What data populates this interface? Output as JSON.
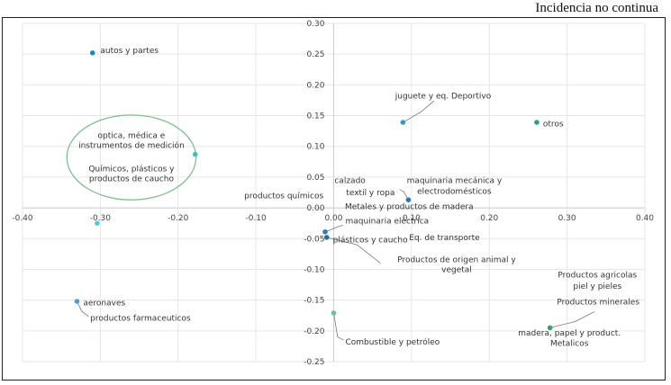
{
  "header": {
    "title": "Incidencia no continua"
  },
  "colors": {
    "grid": "#e6e6e6",
    "axis": "#cfcfcf",
    "ellipse": "#7dbf8e",
    "leader": "#777777"
  },
  "chart_data": {
    "type": "scatter",
    "title": "",
    "xlabel": "",
    "ylabel": "",
    "xlim": [
      -0.4,
      0.4
    ],
    "ylim": [
      -0.25,
      0.3
    ],
    "x_ticks": [
      {
        "v": -0.4,
        "label": "-0.40"
      },
      {
        "v": -0.3,
        "label": "-0.30"
      },
      {
        "v": -0.2,
        "label": "-0.20"
      },
      {
        "v": -0.1,
        "label": "-0.10"
      },
      {
        "v": 0.0,
        "label": "0.00"
      },
      {
        "v": 0.1,
        "label": "0.10"
      },
      {
        "v": 0.2,
        "label": "0.20"
      },
      {
        "v": 0.3,
        "label": "0.30"
      },
      {
        "v": 0.4,
        "label": "0.40"
      }
    ],
    "y_ticks": [
      {
        "v": 0.3,
        "label": "0.30"
      },
      {
        "v": 0.25,
        "label": "0.25"
      },
      {
        "v": 0.2,
        "label": "0.20"
      },
      {
        "v": 0.15,
        "label": "0.15"
      },
      {
        "v": 0.1,
        "label": "0.10"
      },
      {
        "v": 0.05,
        "label": "0.05"
      },
      {
        "v": 0.0,
        "label": "0.00"
      },
      {
        "v": -0.05,
        "label": "-0.05"
      },
      {
        "v": -0.1,
        "label": "-0.10"
      },
      {
        "v": -0.15,
        "label": "-0.15"
      },
      {
        "v": -0.2,
        "label": "-0.20"
      },
      {
        "v": -0.25,
        "label": "-0.25"
      }
    ],
    "grid": true,
    "points": [
      {
        "id": "autos-y-partes",
        "x": -0.31,
        "y": 0.252,
        "color": "#1e8bb5"
      },
      {
        "id": "quimicos-optica",
        "x": -0.178,
        "y": 0.087,
        "color": "#3fc2ae"
      },
      {
        "id": "productos-farmaceuticos",
        "x": -0.304,
        "y": -0.025,
        "color": "#5ac8d8"
      },
      {
        "id": "aeronaves",
        "x": -0.33,
        "y": -0.152,
        "color": "#4a9fcf"
      },
      {
        "id": "juguete",
        "x": 0.089,
        "y": 0.139,
        "color": "#2aa0c0"
      },
      {
        "id": "otros",
        "x": 0.261,
        "y": 0.139,
        "color": "#2a9d8f"
      },
      {
        "id": "metales-calzado",
        "x": 0.096,
        "y": 0.013,
        "color": "#1e7fb0"
      },
      {
        "id": "maquinaria-electrica",
        "x": -0.011,
        "y": -0.039,
        "color": "#2a7fb8"
      },
      {
        "id": "plasticos-caucho",
        "x": -0.009,
        "y": -0.048,
        "color": "#2a6f8f"
      },
      {
        "id": "combustible",
        "x": 0.0,
        "y": -0.171,
        "color": "#6cc08b"
      },
      {
        "id": "madera",
        "x": 0.278,
        "y": -0.195,
        "color": "#3b9e6a"
      }
    ],
    "labels": [
      {
        "id": "autos",
        "text": "autos y partes",
        "x": -0.3,
        "y": 0.256,
        "anchor": "start"
      },
      {
        "id": "optica-1",
        "text": "optica, médica e",
        "x": -0.26,
        "y": 0.118,
        "anchor": "middle"
      },
      {
        "id": "optica-2",
        "text": "instrumentos  de medición",
        "x": -0.26,
        "y": 0.102,
        "anchor": "middle"
      },
      {
        "id": "quimicos-1",
        "text": "Químicos, plásticos y",
        "x": -0.26,
        "y": 0.064,
        "anchor": "middle"
      },
      {
        "id": "quimicos-2",
        "text": "productos de caucho",
        "x": -0.26,
        "y": 0.048,
        "anchor": "middle"
      },
      {
        "id": "prod-quimicos",
        "text": "productos químicos",
        "x": -0.115,
        "y": 0.02,
        "anchor": "start"
      },
      {
        "id": "calzado",
        "text": "calzado",
        "x": 0.001,
        "y": 0.045,
        "anchor": "start"
      },
      {
        "id": "textil",
        "text": "textil y ropa",
        "x": 0.016,
        "y": 0.025,
        "anchor": "start"
      },
      {
        "id": "maq-mec-1",
        "text": "maquinaria mecánica y",
        "x": 0.155,
        "y": 0.045,
        "anchor": "middle"
      },
      {
        "id": "maq-mec-2",
        "text": "electrodomésticos",
        "x": 0.155,
        "y": 0.027,
        "anchor": "middle"
      },
      {
        "id": "metales",
        "text": "Metales  y productos de madera",
        "x": 0.097,
        "y": 0.002,
        "anchor": "middle"
      },
      {
        "id": "maq-elec",
        "text": "maquinaria eléctrica",
        "x": 0.015,
        "y": -0.021,
        "anchor": "start"
      },
      {
        "id": "plasticos",
        "text": "plásticos y caucho",
        "x": -0.001,
        "y": -0.052,
        "anchor": "start"
      },
      {
        "id": "eq-transporte",
        "text": "Eq. de transporte",
        "x": 0.097,
        "y": -0.048,
        "anchor": "start"
      },
      {
        "id": "prod-animal-1",
        "text": "Productos de origen animal y",
        "x": 0.158,
        "y": -0.084,
        "anchor": "middle"
      },
      {
        "id": "prod-animal-2",
        "text": "vegetal",
        "x": 0.158,
        "y": -0.1,
        "anchor": "middle"
      },
      {
        "id": "juguete",
        "text": "juguete y eq. Deportivo",
        "x": 0.079,
        "y": 0.182,
        "anchor": "start"
      },
      {
        "id": "otros",
        "text": "otros",
        "x": 0.269,
        "y": 0.137,
        "anchor": "start"
      },
      {
        "id": "agricolas-1",
        "text": "Productos agricolas",
        "x": 0.339,
        "y": -0.109,
        "anchor": "middle"
      },
      {
        "id": "agricolas-2",
        "text": "piel y pieles",
        "x": 0.339,
        "y": -0.127,
        "anchor": "middle"
      },
      {
        "id": "minerales",
        "text": "Productos minerales",
        "x": 0.34,
        "y": -0.153,
        "anchor": "middle"
      },
      {
        "id": "madera-1",
        "text": "madera, papel y product.",
        "x": 0.303,
        "y": -0.203,
        "anchor": "middle"
      },
      {
        "id": "madera-2",
        "text": "Metalicos",
        "x": 0.303,
        "y": -0.22,
        "anchor": "middle"
      },
      {
        "id": "combustible",
        "text": "Combustible y petróleo",
        "x": 0.015,
        "y": -0.218,
        "anchor": "start"
      },
      {
        "id": "aeronaves",
        "text": "aeronaves",
        "x": -0.322,
        "y": -0.154,
        "anchor": "start"
      },
      {
        "id": "farmaceuticos",
        "text": "productos farmaceuticos",
        "x": -0.313,
        "y": -0.179,
        "anchor": "start"
      }
    ],
    "leaders": [
      {
        "id": "juguete",
        "pts": [
          [
            0.089,
            0.139
          ],
          [
            0.112,
            0.156
          ],
          [
            0.129,
            0.174
          ]
        ]
      },
      {
        "id": "metales",
        "pts": [
          [
            0.096,
            0.013
          ],
          [
            0.09,
            0.026
          ],
          [
            0.085,
            0.03
          ]
        ]
      },
      {
        "id": "maq-elec",
        "pts": [
          [
            -0.011,
            -0.039
          ],
          [
            0.005,
            -0.031
          ],
          [
            0.012,
            -0.028
          ]
        ]
      },
      {
        "id": "plasticos",
        "pts": [
          [
            -0.009,
            -0.048
          ],
          [
            0.03,
            -0.06
          ],
          [
            0.06,
            -0.09
          ]
        ]
      },
      {
        "id": "minerales",
        "pts": [
          [
            0.278,
            -0.195
          ],
          [
            0.31,
            -0.185
          ],
          [
            0.335,
            -0.169
          ]
        ]
      },
      {
        "id": "combustible",
        "pts": [
          [
            0.0,
            -0.171
          ],
          [
            0.005,
            -0.21
          ],
          [
            0.013,
            -0.215
          ]
        ]
      },
      {
        "id": "farmaceuticos",
        "pts": [
          [
            -0.33,
            -0.152
          ],
          [
            -0.324,
            -0.168
          ],
          [
            -0.315,
            -0.177
          ]
        ]
      }
    ],
    "ellipse": {
      "cx": -0.26,
      "cy": 0.082,
      "rx": 0.083,
      "ry": 0.069
    }
  }
}
